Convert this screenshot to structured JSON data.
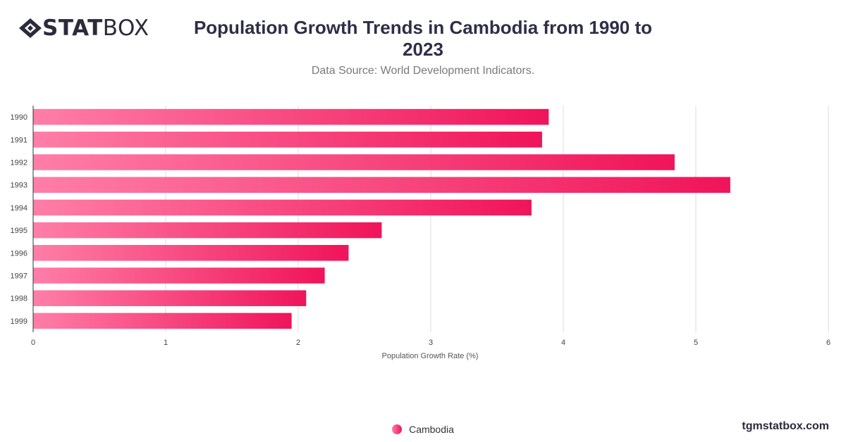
{
  "brand": {
    "bold": "STAT",
    "light": "BOX",
    "icon": "diamond-logo-icon"
  },
  "header": {
    "title": "Population Growth Trends in Cambodia from 1990 to 2023",
    "subtitle": "Data Source: World Development Indicators."
  },
  "footer": {
    "watermark": "tgmstatbox.com"
  },
  "colors": {
    "bar_start": "#ff7ea8",
    "bar_end": "#f0145a",
    "grid": "#dddddd",
    "text": "#2e2e48"
  },
  "chart_data": {
    "type": "bar",
    "orientation": "horizontal",
    "categories": [
      "1990",
      "1991",
      "1992",
      "1993",
      "1994",
      "1995",
      "1996",
      "1997",
      "1998",
      "1999"
    ],
    "series": [
      {
        "name": "Cambodia",
        "values": [
          3.89,
          3.84,
          4.84,
          5.26,
          3.76,
          2.63,
          2.38,
          2.2,
          2.06,
          1.95
        ]
      }
    ],
    "xlabel": "Population Growth Rate (%)",
    "ylabel": "",
    "xlim": [
      0,
      6
    ],
    "xticks": [
      "0",
      "1",
      "2",
      "3",
      "4",
      "5",
      "6"
    ],
    "grid": true,
    "legend": "bottom-center"
  }
}
